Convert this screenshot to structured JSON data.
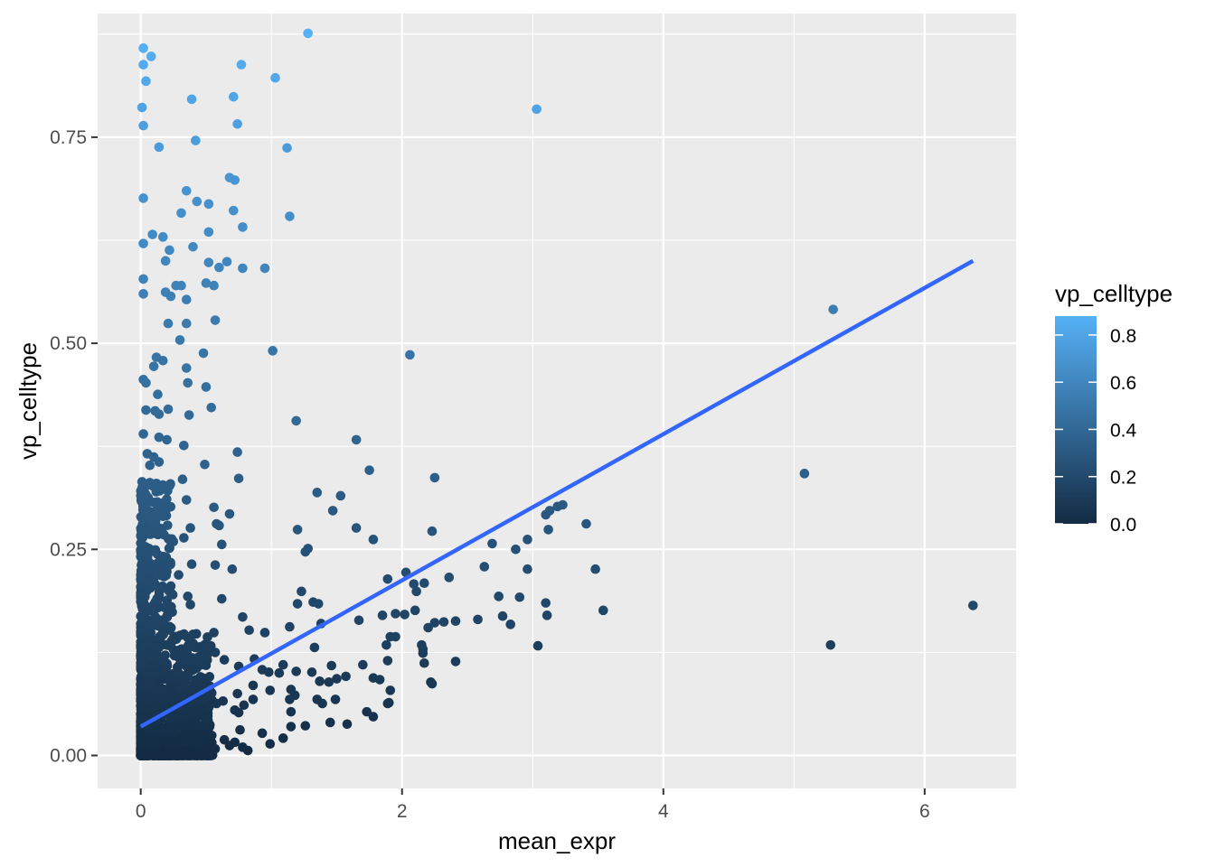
{
  "chart_data": {
    "type": "scatter",
    "xlabel": "mean_expr",
    "ylabel": "vp_celltype",
    "xlim": [
      -0.33,
      6.7
    ],
    "ylim": [
      -0.04,
      0.9
    ],
    "x_ticks": [
      0,
      2,
      4,
      6
    ],
    "x_tick_labels": [
      "0",
      "2",
      "4",
      "6"
    ],
    "y_ticks": [
      0.0,
      0.25,
      0.5,
      0.75
    ],
    "y_tick_labels": [
      "0.00",
      "0.25",
      "0.50",
      "0.75"
    ],
    "grid": true,
    "panel_background": "#EBEBEB",
    "legend": {
      "title": "vp_celltype",
      "placement": "right",
      "color_low": "#132B43",
      "color_high": "#56B1F7",
      "range": [
        0.0,
        0.88
      ],
      "ticks": [
        0.0,
        0.2,
        0.4,
        0.6,
        0.8
      ],
      "tick_labels": [
        "0.0",
        "0.2",
        "0.4",
        "0.6",
        "0.8"
      ]
    },
    "trend_line": {
      "type": "linear",
      "color": "#3366FF",
      "points": [
        [
          0.0,
          0.035
        ],
        [
          6.37,
          0.6
        ]
      ]
    },
    "series": [
      {
        "values": [
          [
            1.28,
            0.876
          ],
          [
            0.02,
            0.858
          ],
          [
            0.08,
            0.848
          ],
          [
            0.77,
            0.838
          ],
          [
            0.02,
            0.838
          ],
          [
            1.03,
            0.822
          ],
          [
            0.04,
            0.818
          ],
          [
            3.03,
            0.784
          ],
          [
            0.01,
            0.786
          ],
          [
            0.39,
            0.796
          ],
          [
            0.71,
            0.799
          ],
          [
            0.74,
            0.766
          ],
          [
            0.02,
            0.764
          ],
          [
            0.14,
            0.738
          ],
          [
            1.12,
            0.737
          ],
          [
            0.42,
            0.746
          ],
          [
            0.68,
            0.701
          ],
          [
            0.72,
            0.698
          ],
          [
            0.35,
            0.685
          ],
          [
            0.02,
            0.676
          ],
          [
            0.43,
            0.672
          ],
          [
            0.52,
            0.669
          ],
          [
            0.71,
            0.661
          ],
          [
            0.31,
            0.658
          ],
          [
            1.14,
            0.654
          ],
          [
            0.78,
            0.641
          ],
          [
            0.09,
            0.632
          ],
          [
            0.17,
            0.629
          ],
          [
            0.52,
            0.635
          ],
          [
            0.02,
            0.621
          ],
          [
            0.4,
            0.617
          ],
          [
            0.22,
            0.613
          ],
          [
            0.19,
            0.6
          ],
          [
            0.52,
            0.598
          ],
          [
            0.66,
            0.599
          ],
          [
            0.6,
            0.592
          ],
          [
            0.78,
            0.591
          ],
          [
            0.95,
            0.591
          ],
          [
            0.02,
            0.578
          ],
          [
            0.5,
            0.573
          ],
          [
            0.56,
            0.57
          ],
          [
            0.27,
            0.57
          ],
          [
            0.31,
            0.57
          ],
          [
            0.19,
            0.562
          ],
          [
            0.23,
            0.557
          ],
          [
            0.02,
            0.56
          ],
          [
            0.35,
            0.553
          ],
          [
            0.57,
            0.528
          ],
          [
            0.21,
            0.524
          ],
          [
            0.35,
            0.524
          ],
          [
            0.3,
            0.504
          ],
          [
            0.48,
            0.488
          ],
          [
            1.01,
            0.491
          ],
          [
            2.06,
            0.486
          ],
          [
            0.12,
            0.483
          ],
          [
            0.17,
            0.479
          ],
          [
            0.1,
            0.472
          ],
          [
            0.35,
            0.47
          ],
          [
            0.02,
            0.456
          ],
          [
            0.04,
            0.452
          ],
          [
            0.36,
            0.452
          ],
          [
            0.5,
            0.447
          ],
          [
            0.13,
            0.438
          ],
          [
            0.21,
            0.42
          ],
          [
            0.04,
            0.419
          ],
          [
            0.54,
            0.422
          ],
          [
            0.37,
            0.413
          ],
          [
            0.14,
            0.414
          ],
          [
            0.11,
            0.418
          ],
          [
            1.19,
            0.406
          ],
          [
            0.02,
            0.39
          ],
          [
            0.14,
            0.386
          ],
          [
            0.2,
            0.383
          ],
          [
            1.65,
            0.383
          ],
          [
            0.33,
            0.376
          ],
          [
            0.74,
            0.368
          ],
          [
            0.05,
            0.366
          ],
          [
            0.1,
            0.362
          ],
          [
            0.14,
            0.356
          ],
          [
            0.07,
            0.352
          ],
          [
            0.49,
            0.353
          ],
          [
            1.75,
            0.346
          ],
          [
            5.08,
            0.342
          ],
          [
            0.32,
            0.335
          ],
          [
            0.75,
            0.336
          ],
          [
            2.25,
            0.337
          ],
          [
            0.12,
            0.33
          ],
          [
            0.01,
            0.332
          ],
          [
            0.07,
            0.331
          ],
          [
            0.17,
            0.328
          ],
          [
            0.22,
            0.327
          ],
          [
            1.35,
            0.319
          ],
          [
            1.53,
            0.315
          ],
          [
            0.35,
            0.31
          ],
          [
            3.23,
            0.304
          ],
          [
            3.19,
            0.302
          ],
          [
            0.56,
            0.301
          ],
          [
            1.47,
            0.297
          ],
          [
            0.68,
            0.293
          ],
          [
            0.17,
            0.29
          ],
          [
            0.11,
            0.288
          ],
          [
            0.58,
            0.281
          ],
          [
            3.13,
            0.297
          ],
          [
            3.1,
            0.292
          ],
          [
            0.6,
            0.279
          ],
          [
            1.2,
            0.274
          ],
          [
            0.02,
            0.275
          ],
          [
            0.38,
            0.276
          ],
          [
            1.65,
            0.276
          ],
          [
            2.23,
            0.272
          ],
          [
            3.12,
            0.274
          ],
          [
            3.41,
            0.281
          ],
          [
            2.96,
            0.262
          ],
          [
            1.78,
            0.262
          ],
          [
            0.33,
            0.264
          ],
          [
            0.62,
            0.256
          ],
          [
            2.69,
            0.257
          ],
          [
            2.87,
            0.25
          ],
          [
            1.28,
            0.251
          ],
          [
            0.03,
            0.246
          ],
          [
            1.26,
            0.247
          ],
          [
            0.39,
            0.232
          ],
          [
            0.57,
            0.231
          ],
          [
            2.63,
            0.229
          ],
          [
            0.7,
            0.226
          ],
          [
            2.96,
            0.226
          ],
          [
            0.2,
            0.223
          ],
          [
            3.48,
            0.226
          ],
          [
            2.03,
            0.222
          ],
          [
            0.29,
            0.219
          ],
          [
            1.89,
            0.214
          ],
          [
            2.36,
            0.216
          ],
          [
            0.05,
            0.212
          ],
          [
            2.09,
            0.208
          ],
          [
            2.17,
            0.209
          ],
          [
            2.11,
            0.199
          ],
          [
            1.23,
            0.199
          ],
          [
            0.36,
            0.193
          ],
          [
            0.62,
            0.19
          ],
          [
            2.74,
            0.193
          ],
          [
            2.9,
            0.192
          ],
          [
            1.32,
            0.186
          ],
          [
            1.36,
            0.184
          ],
          [
            1.2,
            0.184
          ],
          [
            0.13,
            0.188
          ],
          [
            3.1,
            0.185
          ],
          [
            0.38,
            0.183
          ],
          [
            6.37,
            0.182
          ],
          [
            3.54,
            0.176
          ],
          [
            2.1,
            0.176
          ],
          [
            1.95,
            0.172
          ],
          [
            2.02,
            0.171
          ],
          [
            1.85,
            0.17
          ],
          [
            2.77,
            0.169
          ],
          [
            3.11,
            0.17
          ],
          [
            0.78,
            0.168
          ],
          [
            2.32,
            0.162
          ],
          [
            2.25,
            0.161
          ],
          [
            2.41,
            0.163
          ],
          [
            2.58,
            0.165
          ],
          [
            2.83,
            0.159
          ],
          [
            1.67,
            0.164
          ],
          [
            1.38,
            0.16
          ],
          [
            1.14,
            0.156
          ],
          [
            2.2,
            0.155
          ],
          [
            0.83,
            0.152
          ],
          [
            0.95,
            0.149
          ],
          [
            0.56,
            0.149
          ],
          [
            0.17,
            0.149
          ],
          [
            1.91,
            0.144
          ],
          [
            1.95,
            0.144
          ],
          [
            1.88,
            0.134
          ],
          [
            2.15,
            0.134
          ],
          [
            5.28,
            0.134
          ],
          [
            3.04,
            0.133
          ],
          [
            1.33,
            0.131
          ],
          [
            0.14,
            0.131
          ],
          [
            0.52,
            0.131
          ],
          [
            2.16,
            0.129
          ],
          [
            0.31,
            0.127
          ],
          [
            2.16,
            0.124
          ],
          [
            0.57,
            0.125
          ],
          [
            0.87,
            0.117
          ],
          [
            0.34,
            0.116
          ],
          [
            0.64,
            0.116
          ],
          [
            1.89,
            0.115
          ],
          [
            2.41,
            0.114
          ],
          [
            2.17,
            0.112
          ],
          [
            1.7,
            0.11
          ],
          [
            1.46,
            0.109
          ],
          [
            1.09,
            0.11
          ],
          [
            0.75,
            0.108
          ],
          [
            0.28,
            0.107
          ],
          [
            0.93,
            0.104
          ],
          [
            0.98,
            0.101
          ],
          [
            1.31,
            0.101
          ],
          [
            1.19,
            0.102
          ],
          [
            2.22,
            0.089
          ],
          [
            2.23,
            0.087
          ],
          [
            1.78,
            0.094
          ],
          [
            1.57,
            0.096
          ],
          [
            1.83,
            0.092
          ],
          [
            1.5,
            0.093
          ],
          [
            1.06,
            0.1
          ],
          [
            1.37,
            0.09
          ],
          [
            1.44,
            0.089
          ],
          [
            0.86,
            0.085
          ],
          [
            0.53,
            0.084
          ],
          [
            0.99,
            0.079
          ],
          [
            1.15,
            0.08
          ],
          [
            1.91,
            0.079
          ],
          [
            0.74,
            0.075
          ],
          [
            0.35,
            0.074
          ],
          [
            1.18,
            0.073
          ],
          [
            1.14,
            0.068
          ],
          [
            1.35,
            0.068
          ],
          [
            0.63,
            0.066
          ],
          [
            0.86,
            0.068
          ],
          [
            1.49,
            0.068
          ],
          [
            1.9,
            0.064
          ],
          [
            1.89,
            0.063
          ],
          [
            0.79,
            0.061
          ],
          [
            0.58,
            0.063
          ],
          [
            1.39,
            0.063
          ],
          [
            0.72,
            0.055
          ],
          [
            0.4,
            0.054
          ],
          [
            1.15,
            0.053
          ],
          [
            0.75,
            0.052
          ],
          [
            0.22,
            0.049
          ],
          [
            1.73,
            0.053
          ],
          [
            1.78,
            0.047
          ],
          [
            0.51,
            0.045
          ],
          [
            0.42,
            0.042
          ],
          [
            1.15,
            0.035
          ],
          [
            1.26,
            0.036
          ],
          [
            1.45,
            0.04
          ],
          [
            1.58,
            0.038
          ],
          [
            0.76,
            0.031
          ],
          [
            0.93,
            0.027
          ],
          [
            0.34,
            0.025
          ],
          [
            0.31,
            0.021
          ],
          [
            1.09,
            0.021
          ],
          [
            0.64,
            0.019
          ],
          [
            0.72,
            0.016
          ],
          [
            0.99,
            0.014
          ],
          [
            0.5,
            0.012
          ],
          [
            0.82,
            0.006
          ],
          [
            0.78,
            0.01
          ],
          [
            0.68,
            0.012
          ],
          [
            0.47,
            0.013
          ],
          [
            0.21,
            0.012
          ],
          [
            0.53,
            0.009
          ],
          [
            0.57,
            0.008
          ],
          [
            0.44,
            0.005
          ],
          [
            5.3,
            0.541
          ]
        ]
      }
    ]
  }
}
